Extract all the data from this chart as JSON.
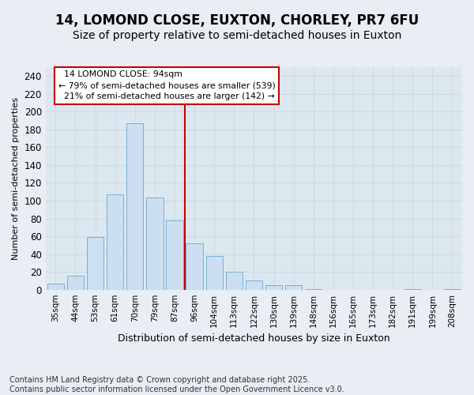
{
  "title": "14, LOMOND CLOSE, EUXTON, CHORLEY, PR7 6FU",
  "subtitle": "Size of property relative to semi-detached houses in Euxton",
  "xlabel": "Distribution of semi-detached houses by size in Euxton",
  "ylabel": "Number of semi-detached properties",
  "categories": [
    "35sqm",
    "44sqm",
    "53sqm",
    "61sqm",
    "70sqm",
    "79sqm",
    "87sqm",
    "96sqm",
    "104sqm",
    "113sqm",
    "122sqm",
    "130sqm",
    "139sqm",
    "148sqm",
    "156sqm",
    "165sqm",
    "173sqm",
    "182sqm",
    "191sqm",
    "199sqm",
    "208sqm"
  ],
  "values": [
    7,
    16,
    59,
    107,
    187,
    104,
    78,
    52,
    38,
    20,
    10,
    5,
    5,
    1,
    0,
    0,
    0,
    0,
    1,
    0,
    1
  ],
  "bar_color": "#ccdff0",
  "bar_edge_color": "#7aafd4",
  "vline_bin_index": 7,
  "vline_color": "#cc0000",
  "box_color": "#cc0000",
  "property_label": "14 LOMOND CLOSE: 94sqm",
  "pct_smaller": 79,
  "pct_larger": 21,
  "count_smaller": 539,
  "count_larger": 142,
  "ylim": [
    0,
    250
  ],
  "yticks": [
    0,
    20,
    40,
    60,
    80,
    100,
    120,
    140,
    160,
    180,
    200,
    220,
    240
  ],
  "grid_color": "#d0d8e4",
  "bg_color": "#dce8f0",
  "fig_bg_color": "#e8eef4",
  "title_fontsize": 12,
  "subtitle_fontsize": 10,
  "footer_text": "Contains HM Land Registry data © Crown copyright and database right 2025.\nContains public sector information licensed under the Open Government Licence v3.0.",
  "footer_fontsize": 7
}
